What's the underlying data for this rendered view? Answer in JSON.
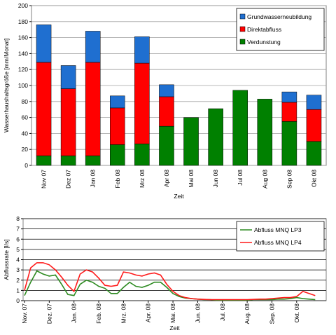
{
  "chart_data": [
    {
      "type": "bar",
      "stacked": true,
      "categories": [
        "Nov 07",
        "Dez 07",
        "Jan 08",
        "Feb 08",
        "Mrz 08",
        "Apr 08",
        "Mai 08",
        "Jun 08",
        "Jul 08",
        "Aug 08",
        "Sep 08",
        "Okt 08"
      ],
      "series": [
        {
          "name": "Verdunstung",
          "color": "#008000",
          "values": [
            12,
            12,
            12,
            26,
            27,
            49,
            60,
            71,
            94,
            83,
            55,
            30
          ]
        },
        {
          "name": "Direktabfluss",
          "color": "#ff0000",
          "values": [
            117,
            84,
            117,
            46,
            101,
            37,
            0,
            0,
            0,
            0,
            24,
            40
          ]
        },
        {
          "name": "Grundwasserneubildung",
          "color": "#1f6fd0",
          "values": [
            47,
            29,
            39,
            15,
            33,
            15,
            0,
            0,
            0,
            0,
            13,
            18
          ]
        }
      ],
      "ylim": [
        0,
        200
      ],
      "yticks": [
        0,
        20,
        40,
        60,
        80,
        100,
        120,
        140,
        160,
        180,
        200
      ],
      "y_label": "Wasserhaushaltsgröße [mm/Monat]",
      "x_label": "Zeit",
      "grid": true,
      "legend": "top-right"
    },
    {
      "type": "line",
      "categories": [
        "Nov. 07",
        null,
        null,
        null,
        "Dez. 07",
        null,
        null,
        null,
        "Jan. 08",
        null,
        null,
        null,
        "Feb. 08",
        null,
        null,
        null,
        "Mrz. 08",
        null,
        null,
        null,
        "Apr. 08",
        null,
        null,
        null,
        "Mai. 08",
        null,
        null,
        null,
        "Jun. 08",
        null,
        null,
        null,
        "Jul. 08",
        null,
        null,
        null,
        "Aug. 08",
        null,
        null,
        null,
        "Sep. 08",
        null,
        null,
        null,
        "Okt. 08",
        null,
        null,
        null
      ],
      "series": [
        {
          "name": "Abfluss MNQ LP3",
          "color": "#2e8b22",
          "values": [
            0.5,
            1.8,
            2.9,
            2.6,
            2.4,
            2.5,
            1.6,
            0.6,
            0.5,
            1.6,
            2.0,
            1.8,
            1.4,
            1.2,
            0.7,
            0.7,
            1.3,
            1.8,
            1.4,
            1.3,
            1.5,
            1.8,
            1.8,
            1.3,
            0.7,
            0.4,
            0.25,
            0.2,
            0.15,
            0.1,
            0.1,
            0.05,
            0.05,
            0.05,
            0.05,
            0.05,
            0.05,
            0.1,
            0.1,
            0.1,
            0.1,
            0.15,
            0.15,
            0.2,
            0.3,
            0.2,
            0.15,
            0.1
          ]
        },
        {
          "name": "Abfluss MNQ LP4",
          "color": "#ff1a1a",
          "values": [
            1.0,
            3.2,
            3.7,
            3.7,
            3.5,
            3.0,
            2.3,
            1.5,
            0.9,
            2.6,
            3.0,
            2.8,
            2.2,
            1.5,
            1.4,
            1.5,
            2.8,
            2.7,
            2.5,
            2.4,
            2.6,
            2.7,
            2.5,
            1.6,
            0.9,
            0.5,
            0.3,
            0.2,
            0.15,
            0.12,
            0.1,
            0.1,
            0.1,
            0.1,
            0.1,
            0.1,
            0.1,
            0.12,
            0.15,
            0.15,
            0.2,
            0.25,
            0.3,
            0.3,
            0.4,
            0.9,
            0.7,
            0.5
          ]
        }
      ],
      "ylim": [
        0,
        8
      ],
      "yticks": [
        0,
        1,
        2,
        3,
        4,
        5,
        6,
        7,
        8
      ],
      "y_label": "Abflussrate [l/s]",
      "x_label": "Zeit",
      "grid": true,
      "legend": "top-right"
    }
  ]
}
